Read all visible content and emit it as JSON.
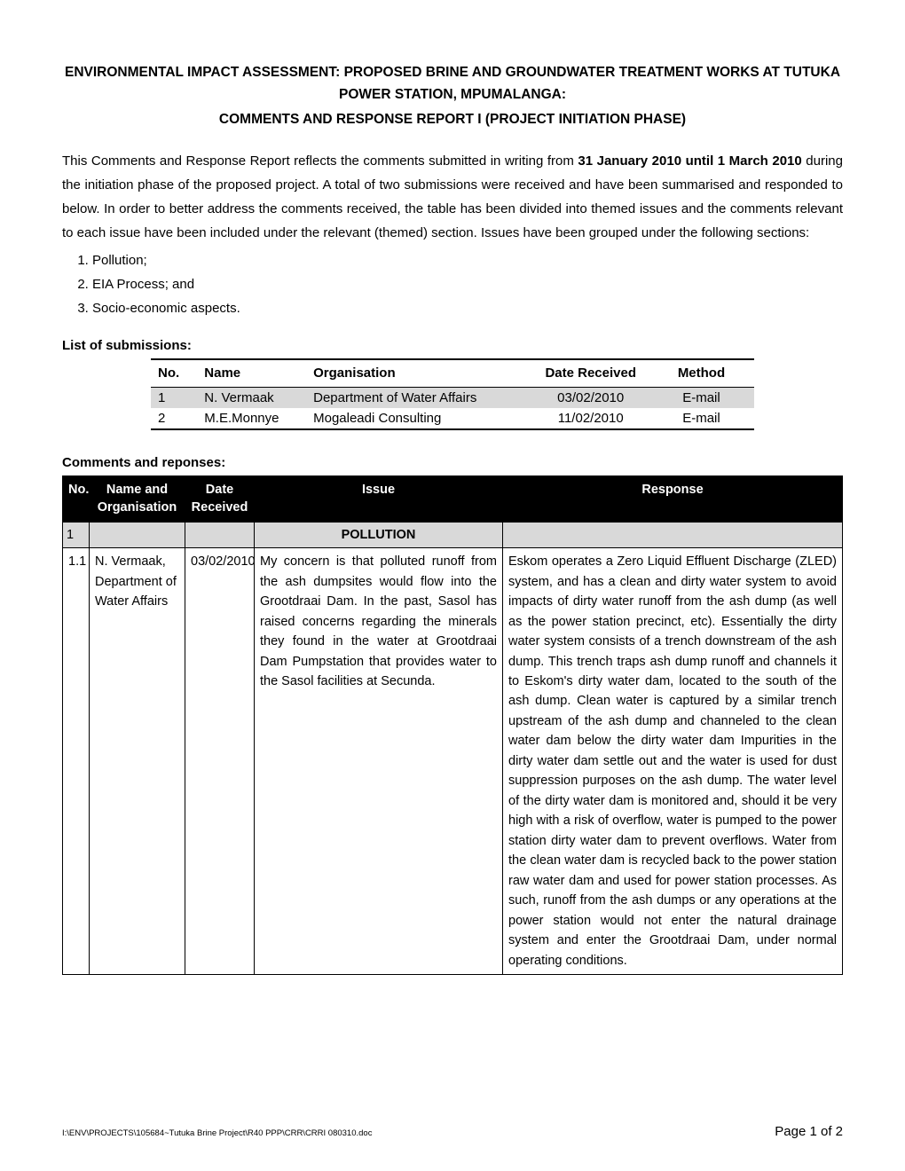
{
  "title_line1": "ENVIRONMENTAL IMPACT ASSESSMENT: PROPOSED BRINE AND GROUNDWATER TREATMENT WORKS AT TUTUKA POWER STATION, MPUMALANGA:",
  "subtitle": "COMMENTS AND RESPONSE REPORT I (PROJECT INITIATION PHASE)",
  "intro_pre": "This Comments and Response Report reflects the comments submitted in writing from ",
  "intro_bold": "31 January 2010 until 1 March 2010",
  "intro_post": " during the initiation phase of the proposed project. A total of two submissions were received and have been summarised and responded to below. In order to better address the comments received, the table has been divided into themed issues and the comments relevant to each issue have been included under the relevant (themed) section. Issues have been grouped under the following sections:",
  "sections_list": {
    "0": "Pollution;",
    "1": "EIA Process; and",
    "2": "Socio-economic aspects."
  },
  "submissions_heading": "List of submissions:",
  "submissions": {
    "headers": {
      "no": "No.",
      "name": "Name",
      "org": "Organisation",
      "date": "Date Received",
      "method": "Method"
    },
    "rows": {
      "0": {
        "no": "1",
        "name": "N. Vermaak",
        "org": "Department of Water Affairs",
        "date": "03/02/2010",
        "method": "E-mail"
      },
      "1": {
        "no": "2",
        "name": "M.E.Monnye",
        "org": "Mogaleadi Consulting",
        "date": "11/02/2010",
        "method": "E-mail"
      }
    }
  },
  "comments_heading": "Comments and reponses:",
  "comments_table": {
    "headers": {
      "no": "No.",
      "name": "Name and Organisation",
      "date": "Date Received",
      "issue": "Issue",
      "response": "Response"
    },
    "section": {
      "no": "1",
      "title": "POLLUTION"
    },
    "row1": {
      "no": "1.1",
      "name": "N. Vermaak, Department of Water Affairs",
      "date": "03/02/2010",
      "issue": "My concern is that polluted runoff from the ash dumpsites would flow into the Grootdraai Dam. In the past, Sasol has raised concerns regarding the minerals they found in the water at Grootdraai Dam Pumpstation that provides water to the Sasol facilities at Secunda.",
      "response": "Eskom operates a Zero Liquid Effluent Discharge (ZLED) system, and has a clean and dirty water system to avoid impacts of dirty water runoff from the ash dump (as well as the power station precinct, etc). Essentially the dirty water system consists of a trench downstream of the ash dump. This trench traps ash dump runoff and channels it to Eskom's dirty water dam, located to the south of the ash dump. Clean water is captured by a similar trench upstream of the ash dump and channeled to the clean water dam below the dirty water dam Impurities in the dirty water dam settle out and the water is used for dust suppression purposes on the ash dump. The water level of the dirty water dam is monitored and, should it be very high with a risk of overflow, water is pumped to the power station dirty water dam to prevent overflows. Water from the clean water dam is recycled back to the power station raw water dam and used for power station processes. As such, runoff from the ash dumps or any operations at the power station would not enter the natural drainage system and enter the Grootdraai Dam, under normal operating conditions."
    }
  },
  "footer": {
    "path": "I:\\ENV\\PROJECTS\\105684~Tutuka Brine Project\\R40 PPP\\CRR\\CRRI 080310.doc",
    "page": "Page 1 of 2"
  },
  "colors": {
    "table_header_bg": "#000000",
    "table_header_fg": "#ffffff",
    "shaded_row": "#d9d9d9",
    "border": "#000000",
    "text": "#000000",
    "background": "#ffffff"
  },
  "typography": {
    "font_family": "Arial",
    "body_fontsize_pt": 11,
    "title_fontsize_pt": 11.5,
    "footer_path_fontsize_pt": 7
  }
}
